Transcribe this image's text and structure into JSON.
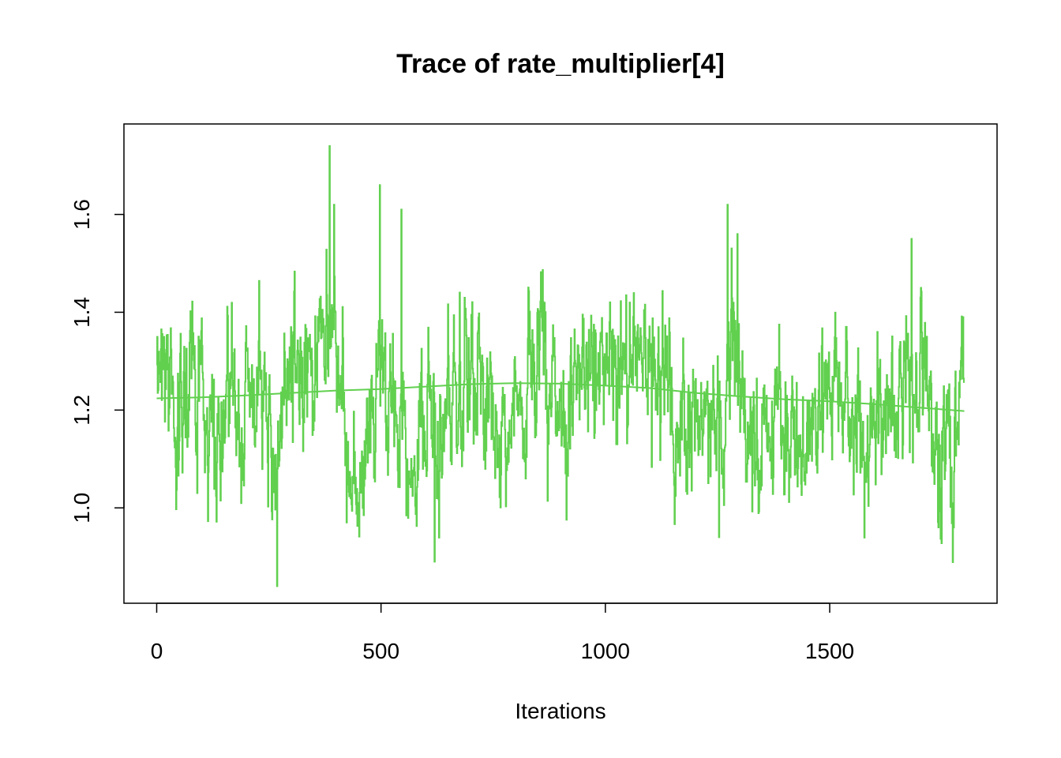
{
  "chart_data": {
    "type": "line",
    "title": "Trace of rate_multiplier[4]",
    "xlabel": "Iterations",
    "ylabel": "",
    "xlim": [
      -73,
      1873
    ],
    "ylim": [
      0.805,
      1.785
    ],
    "x_ticks": [
      0,
      500,
      1000,
      1500
    ],
    "y_ticks": [
      1.0,
      1.2,
      1.4,
      1.6
    ],
    "x_tick_labels": [
      "0",
      "500",
      "1000",
      "1500"
    ],
    "y_tick_labels": [
      "1.0",
      "1.2",
      "1.4",
      "1.6"
    ],
    "grid": false,
    "legend": "none",
    "series": [
      {
        "role": "trace",
        "color": "#61D04F",
        "n_iterations": 1800,
        "anchors": [
          [
            0,
            1.36
          ],
          [
            20,
            1.35
          ],
          [
            40,
            1.1
          ],
          [
            60,
            1.22
          ],
          [
            80,
            1.3
          ],
          [
            100,
            1.25
          ],
          [
            120,
            1.12
          ],
          [
            140,
            1.15
          ],
          [
            160,
            1.22
          ],
          [
            180,
            1.18
          ],
          [
            200,
            1.2
          ],
          [
            220,
            1.27
          ],
          [
            240,
            1.22
          ],
          [
            260,
            1.12
          ],
          [
            280,
            1.2
          ],
          [
            300,
            1.28
          ],
          [
            320,
            1.3
          ],
          [
            340,
            1.25
          ],
          [
            360,
            1.33
          ],
          [
            380,
            1.36
          ],
          [
            400,
            1.35
          ],
          [
            420,
            1.15
          ],
          [
            440,
            1.05
          ],
          [
            460,
            1.13
          ],
          [
            480,
            1.15
          ],
          [
            500,
            1.3
          ],
          [
            520,
            1.25
          ],
          [
            540,
            1.25
          ],
          [
            560,
            1.1
          ],
          [
            580,
            1.15
          ],
          [
            600,
            1.18
          ],
          [
            620,
            1.1
          ],
          [
            640,
            1.2
          ],
          [
            660,
            1.25
          ],
          [
            680,
            1.28
          ],
          [
            700,
            1.3
          ],
          [
            720,
            1.28
          ],
          [
            740,
            1.22
          ],
          [
            760,
            1.2
          ],
          [
            780,
            1.12
          ],
          [
            800,
            1.25
          ],
          [
            820,
            1.22
          ],
          [
            840,
            1.28
          ],
          [
            860,
            1.3
          ],
          [
            880,
            1.22
          ],
          [
            900,
            1.2
          ],
          [
            920,
            1.15
          ],
          [
            940,
            1.28
          ],
          [
            960,
            1.32
          ],
          [
            980,
            1.3
          ],
          [
            1000,
            1.25
          ],
          [
            1020,
            1.28
          ],
          [
            1040,
            1.22
          ],
          [
            1060,
            1.28
          ],
          [
            1080,
            1.3
          ],
          [
            1100,
            1.28
          ],
          [
            1120,
            1.3
          ],
          [
            1140,
            1.25
          ],
          [
            1160,
            1.1
          ],
          [
            1180,
            1.12
          ],
          [
            1200,
            1.15
          ],
          [
            1220,
            1.2
          ],
          [
            1240,
            1.15
          ],
          [
            1260,
            1.1
          ],
          [
            1280,
            1.35
          ],
          [
            1300,
            1.3
          ],
          [
            1320,
            1.15
          ],
          [
            1340,
            1.1
          ],
          [
            1360,
            1.15
          ],
          [
            1380,
            1.22
          ],
          [
            1400,
            1.18
          ],
          [
            1420,
            1.1
          ],
          [
            1440,
            1.15
          ],
          [
            1460,
            1.2
          ],
          [
            1480,
            1.22
          ],
          [
            1500,
            1.25
          ],
          [
            1520,
            1.22
          ],
          [
            1540,
            1.2
          ],
          [
            1560,
            1.18
          ],
          [
            1580,
            1.12
          ],
          [
            1600,
            1.2
          ],
          [
            1620,
            1.25
          ],
          [
            1640,
            1.22
          ],
          [
            1660,
            1.25
          ],
          [
            1680,
            1.3
          ],
          [
            1700,
            1.32
          ],
          [
            1720,
            1.3
          ],
          [
            1740,
            1.12
          ],
          [
            1760,
            1.15
          ],
          [
            1780,
            1.12
          ],
          [
            1800,
            1.35
          ]
        ],
        "extremes": [
          [
            385,
            1.74
          ],
          [
            395,
            1.62
          ],
          [
            497,
            1.66
          ],
          [
            545,
            1.61
          ],
          [
            1272,
            1.62
          ],
          [
            1294,
            1.56
          ],
          [
            1682,
            1.55
          ],
          [
            268,
            0.84
          ],
          [
            619,
            0.89
          ],
          [
            1253,
            0.94
          ],
          [
            423,
            0.97
          ],
          [
            1742,
            0.96
          ],
          [
            1807,
            0.99
          ]
        ],
        "noise_sd": 0.075,
        "seed": 4
      },
      {
        "role": "smoothed-mean",
        "color": "#61D04F",
        "x": [
          0,
          100,
          200,
          300,
          400,
          500,
          600,
          700,
          800,
          900,
          1000,
          1100,
          1200,
          1300,
          1400,
          1500,
          1600,
          1700,
          1800
        ],
        "values": [
          1.224,
          1.226,
          1.23,
          1.235,
          1.24,
          1.243,
          1.248,
          1.253,
          1.255,
          1.254,
          1.25,
          1.245,
          1.235,
          1.228,
          1.222,
          1.218,
          1.212,
          1.205,
          1.198
        ]
      }
    ]
  }
}
